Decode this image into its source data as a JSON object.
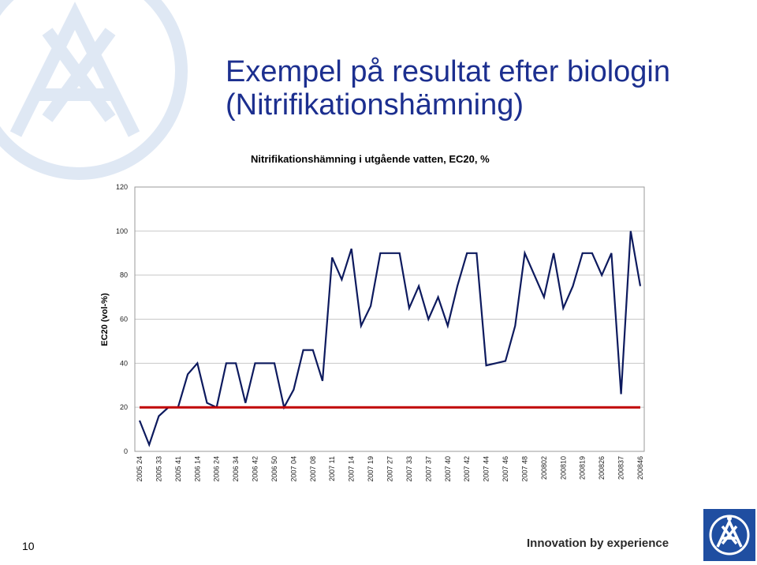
{
  "slide": {
    "title_line1": "Exempel på resultat efter biologin",
    "title_line2": "(Nitrifikationshämning)",
    "page_number": "10",
    "tagline": "Innovation by experience"
  },
  "colors": {
    "title": "#1c2f8f",
    "series": "#0d1a5e",
    "reference": "#c00000",
    "grid": "#c8c8c8",
    "logo": "#1f4ea1",
    "watermark": "#dfe8f4"
  },
  "chart_data": {
    "type": "line",
    "title": "Nitrifikationshämning i utgående vatten, EC20, %",
    "xlabel": "",
    "ylabel": "EC20 (vol-%)",
    "ylim": [
      0,
      120
    ],
    "yticks": [
      0,
      20,
      40,
      60,
      80,
      100,
      120
    ],
    "grid": true,
    "legend": "none",
    "x_tick_labels": [
      "2005 24",
      "2005 33",
      "2005 41",
      "2006 14",
      "2006 24",
      "2006 34",
      "2006 42",
      "2006 50",
      "2007 04",
      "2007 08",
      "2007 11",
      "2007 14",
      "2007 19",
      "2007 27",
      "2007 33",
      "2007 37",
      "2007 40",
      "2007 42",
      "2007 44",
      "2007 46",
      "2007 48",
      "200802",
      "200810",
      "200819",
      "200826",
      "200837",
      "200846"
    ],
    "series": [
      {
        "values": [
          14,
          3,
          16,
          20,
          20,
          35,
          40,
          22,
          20,
          40,
          40,
          22,
          40,
          40,
          40,
          20,
          28,
          46,
          46,
          32,
          88,
          78,
          92,
          57,
          66,
          90,
          90,
          90,
          65,
          75,
          60,
          70,
          57,
          75,
          90,
          90,
          39,
          40,
          41,
          57,
          90,
          80,
          70,
          90,
          65,
          75,
          90,
          90,
          80,
          90,
          26,
          100,
          75
        ]
      },
      {
        "values": [
          20,
          20,
          20,
          20,
          20,
          20,
          20,
          20,
          20,
          20,
          20,
          20,
          20,
          20,
          20,
          20,
          20,
          20,
          20,
          20,
          20,
          20,
          20,
          20,
          20,
          20,
          20,
          20,
          20,
          20,
          20,
          20,
          20,
          20,
          20,
          20,
          20,
          20,
          20,
          20,
          20,
          20,
          20,
          20,
          20,
          20,
          20,
          20,
          20,
          20,
          20,
          20,
          20
        ]
      }
    ]
  }
}
